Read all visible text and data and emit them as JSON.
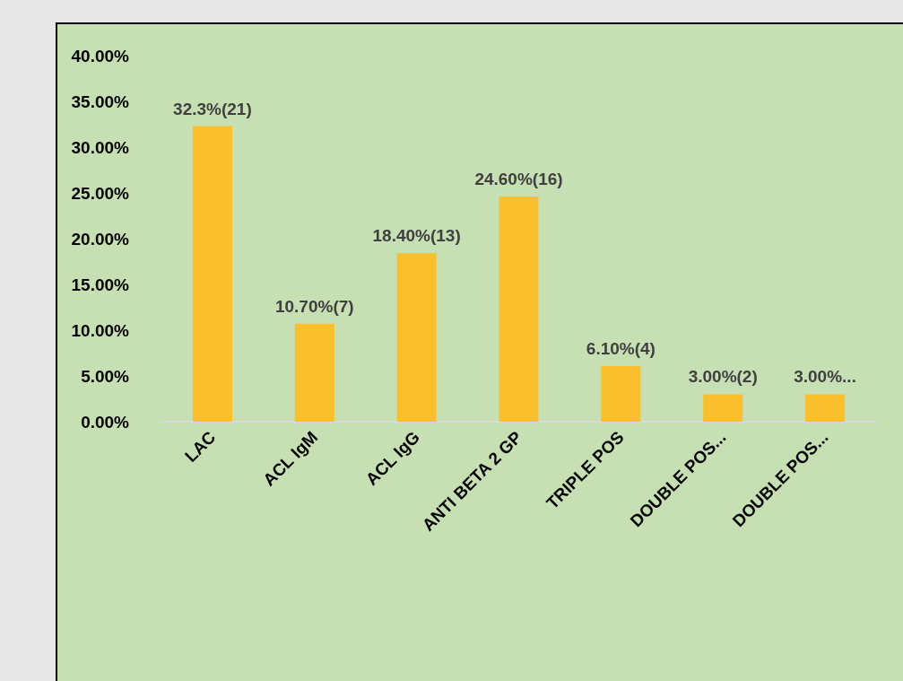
{
  "chart_data": {
    "type": "bar",
    "categories": [
      "LAC",
      "ACL IgM",
      "ACL IgG",
      "ANTI BETA 2 GP",
      "TRIPLE POS",
      "DOUBLE POS...",
      "DOUBLE POS..."
    ],
    "values": [
      32.3,
      10.7,
      18.4,
      24.6,
      6.1,
      3.0,
      3.0
    ],
    "value_labels": [
      "32.3%(21)",
      "10.70%(7)",
      "18.40%(13)",
      "24.60%(16)",
      "6.10%(4)",
      "3.00%(2)",
      "3.00%..."
    ],
    "color": "#f9bf2c",
    "ylim": [
      0,
      40
    ],
    "yticks": [
      {
        "value": 0,
        "label": "0.00%"
      },
      {
        "value": 5,
        "label": "5.00%"
      },
      {
        "value": 10,
        "label": "10.00%"
      },
      {
        "value": 15,
        "label": "15.00%"
      },
      {
        "value": 20,
        "label": "20.00%"
      },
      {
        "value": 25,
        "label": "25.00%"
      },
      {
        "value": 30,
        "label": "30.00%"
      },
      {
        "value": 35,
        "label": "35.00%"
      },
      {
        "value": 40,
        "label": "40.00%"
      }
    ],
    "grid": false
  }
}
